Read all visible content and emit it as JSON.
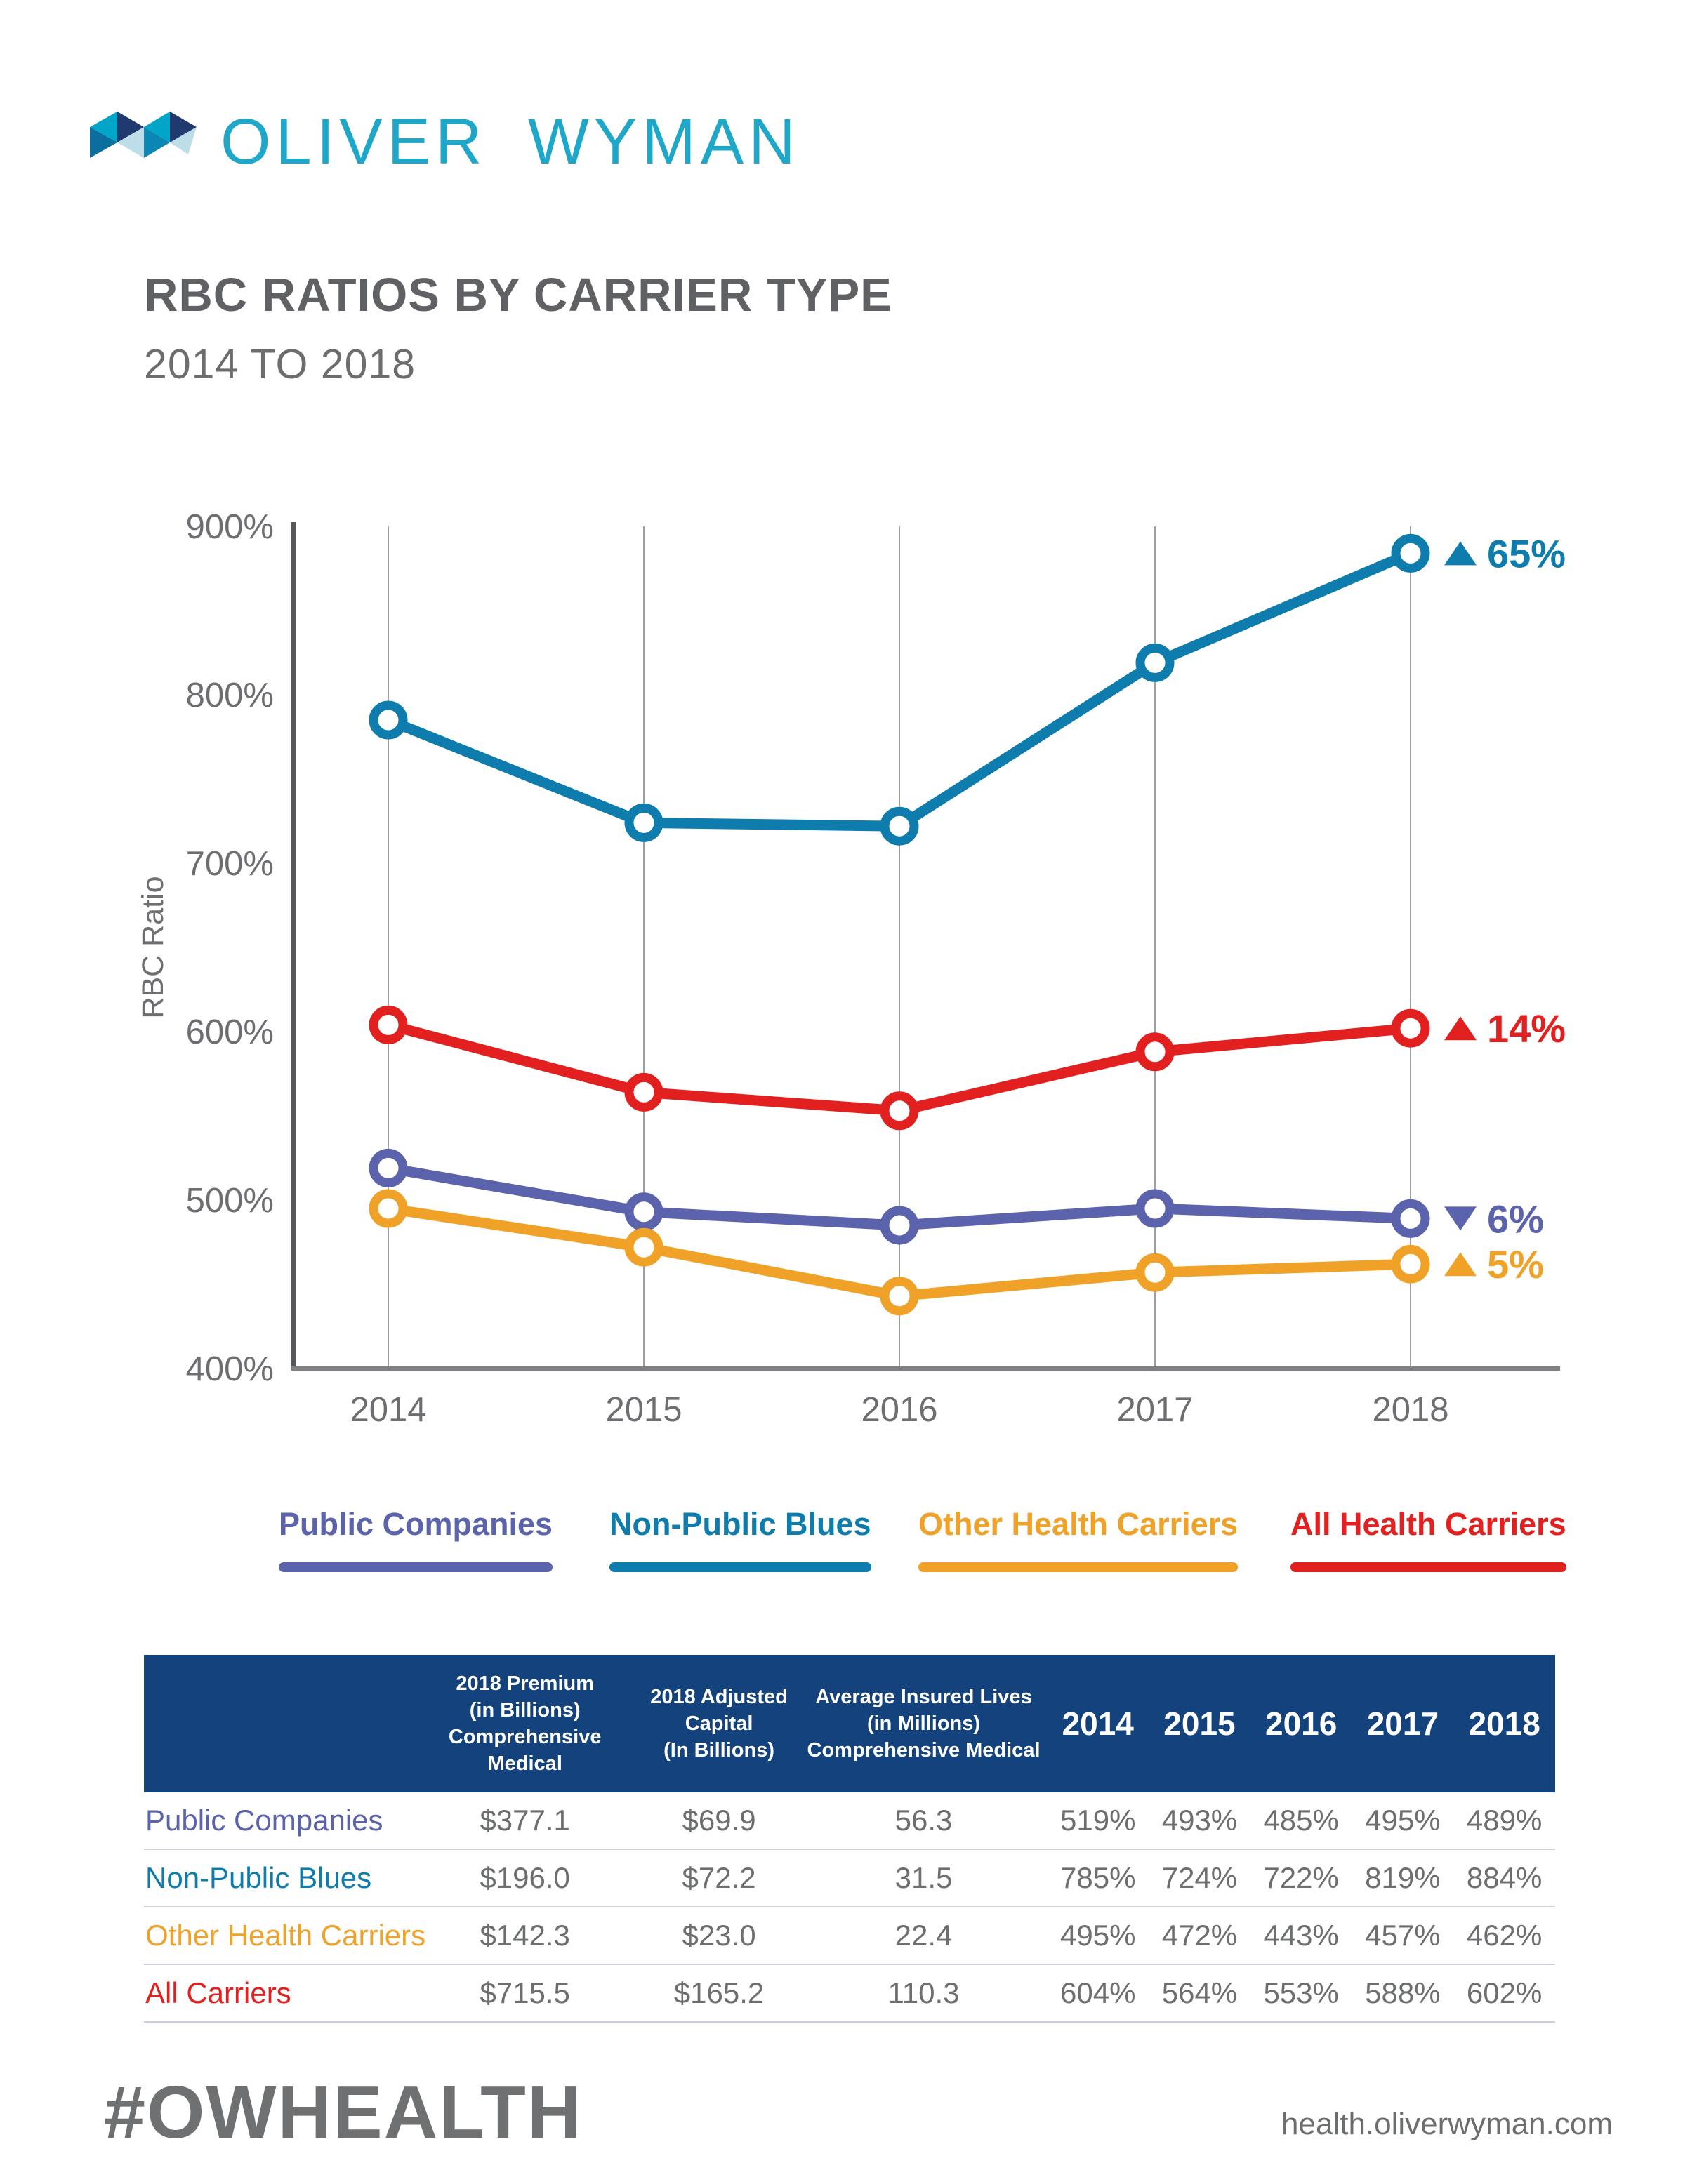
{
  "brand": {
    "wordmark": "OLIVER WYMAN",
    "wordmark_color": "#1FA7C9",
    "logo_colors": [
      "#00A5C8",
      "#20396F",
      "#0B6E9D",
      "#BDDDE9",
      "#0C86B4"
    ]
  },
  "title": "RBC RATIOS BY CARRIER TYPE",
  "subtitle": "2014 TO 2018",
  "chart_data": {
    "type": "line",
    "title": "RBC RATIOS BY CARRIER TYPE 2014 TO 2018",
    "x": [
      2014,
      2015,
      2016,
      2017,
      2018
    ],
    "xlabel": "",
    "ylabel": "RBC Ratio",
    "ylim": [
      400,
      900
    ],
    "yticks": [
      "400%",
      "500%",
      "600%",
      "700%",
      "800%",
      "900%"
    ],
    "ytick_step": 100,
    "ytick_suffix": "%",
    "grid": "vertical-only",
    "legend_position": "bottom",
    "series": [
      {
        "name": "Public Companies",
        "color": "#5B63AC",
        "values": [
          519,
          493,
          485,
          495,
          489
        ],
        "annotation": {
          "direction": "down",
          "label": "6%"
        }
      },
      {
        "name": "Other Health Carriers",
        "color": "#EFA227",
        "values": [
          495,
          472,
          443,
          457,
          462
        ],
        "annotation": {
          "direction": "up",
          "label": "5%"
        }
      },
      {
        "name": "All Health Carriers",
        "color": "#E2201F",
        "values": [
          604,
          564,
          553,
          588,
          602
        ],
        "annotation": {
          "direction": "up",
          "label": "14%"
        }
      },
      {
        "name": "Non-Public Blues",
        "color": "#0E7CAC",
        "values": [
          785,
          724,
          722,
          819,
          884
        ],
        "annotation": {
          "direction": "up",
          "label": "65%"
        }
      }
    ]
  },
  "legend": {
    "items": [
      {
        "label": "Public Companies",
        "color": "#5B63AC"
      },
      {
        "label": "Non-Public Blues",
        "color": "#0E7CAC"
      },
      {
        "label": "Other Health Carriers",
        "color": "#EFA227"
      },
      {
        "label": "All Health Carriers",
        "color": "#E2201F"
      }
    ]
  },
  "table": {
    "header_bg": "#14427C",
    "header_text_color": "#FFFFFF",
    "columns": [
      {
        "lines": [],
        "type": "row-label"
      },
      {
        "lines": [
          "2018 Premium",
          "(in Billions)",
          "Comprehensive Medical"
        ],
        "type": "small"
      },
      {
        "lines": [
          "2018 Adjusted",
          "Capital",
          "(In Billions)"
        ],
        "type": "small"
      },
      {
        "lines": [
          "Average Insured Lives",
          "(in Millions)",
          "Comprehensive Medical"
        ],
        "type": "small"
      },
      {
        "lines": [
          "2014"
        ],
        "type": "year"
      },
      {
        "lines": [
          "2015"
        ],
        "type": "year"
      },
      {
        "lines": [
          "2016"
        ],
        "type": "year"
      },
      {
        "lines": [
          "2017"
        ],
        "type": "year"
      },
      {
        "lines": [
          "2018"
        ],
        "type": "year"
      }
    ],
    "rows": [
      {
        "label": "Public Companies",
        "color": "#5B63AC",
        "values": [
          "$377.1",
          "$69.9",
          "56.3",
          "519%",
          "493%",
          "485%",
          "495%",
          "489%"
        ]
      },
      {
        "label": "Non-Public Blues",
        "color": "#0E7CAC",
        "values": [
          "$196.0",
          "$72.2",
          "31.5",
          "785%",
          "724%",
          "722%",
          "819%",
          "884%"
        ]
      },
      {
        "label": "Other Health Carriers",
        "color": "#EFA227",
        "values": [
          "$142.3",
          "$23.0",
          "22.4",
          "495%",
          "472%",
          "443%",
          "457%",
          "462%"
        ]
      },
      {
        "label": "All Carriers",
        "color": "#E2201F",
        "values": [
          "$715.5",
          "$165.2",
          "110.3",
          "604%",
          "564%",
          "553%",
          "588%",
          "602%"
        ]
      }
    ]
  },
  "footer": {
    "hashtag": "#OWHEALTH",
    "website": "health.oliverwyman.com"
  }
}
